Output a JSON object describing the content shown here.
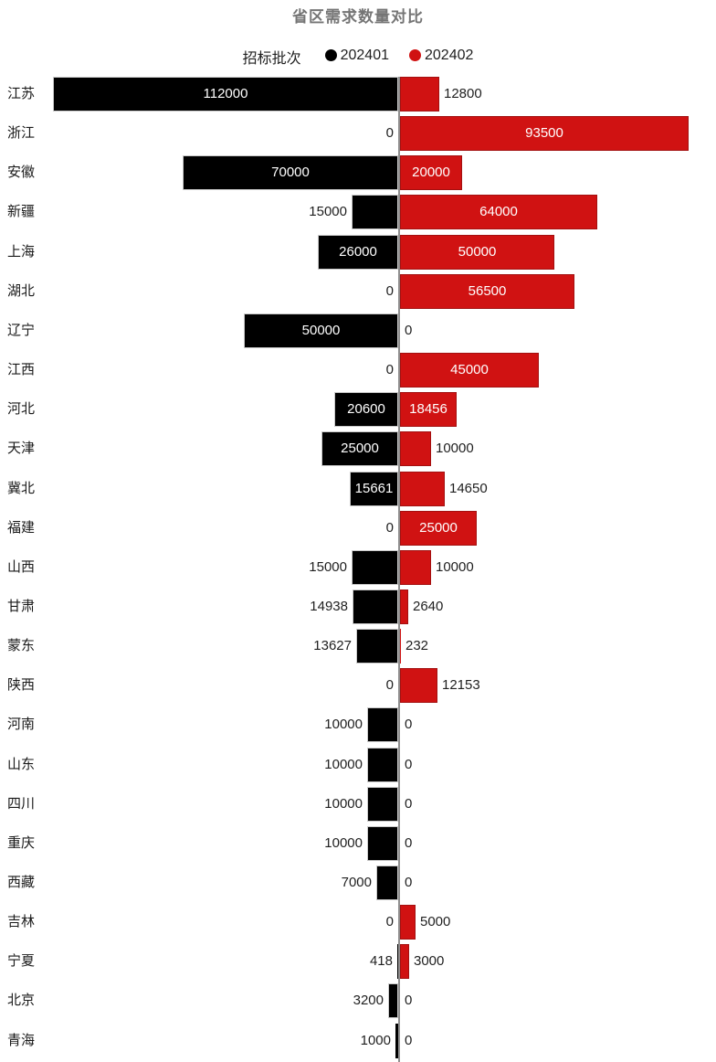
{
  "chart_data": {
    "type": "bar",
    "variant": "diverging-tornado",
    "title": "省区需求数量对比",
    "legend_title": "招标批次",
    "legend_position": "top-center",
    "grid": false,
    "categories": [
      "江苏",
      "浙江",
      "安徽",
      "新疆",
      "上海",
      "湖北",
      "辽宁",
      "江西",
      "河北",
      "天津",
      "冀北",
      "福建",
      "山西",
      "甘肃",
      "蒙东",
      "陕西",
      "河南",
      "山东",
      "四川",
      "重庆",
      "西藏",
      "吉林",
      "宁夏",
      "北京",
      "青海"
    ],
    "series": [
      {
        "name": "202401",
        "direction": "left",
        "color": "#000000",
        "border_color": "#c9c9c9",
        "values": [
          112000,
          0,
          70000,
          15000,
          26000,
          0,
          50000,
          0,
          20600,
          25000,
          15661,
          0,
          15000,
          14938,
          13627,
          0,
          10000,
          10000,
          10000,
          10000,
          7000,
          0,
          418,
          3200,
          1000
        ]
      },
      {
        "name": "202402",
        "direction": "right",
        "color": "#d01212",
        "border_color": "#a31010",
        "values": [
          12800,
          93500,
          20000,
          64000,
          50000,
          56500,
          0,
          45000,
          18456,
          10000,
          14650,
          25000,
          10000,
          2640,
          232,
          12153,
          0,
          0,
          0,
          0,
          0,
          5000,
          3000,
          0,
          0
        ]
      }
    ],
    "axis": {
      "orientation": "vertical-center",
      "color": "#8f8f8f"
    },
    "value_scale_max_left": 112000,
    "value_scale_max_right": 93500,
    "colors": {
      "title_text": "#757575",
      "label_outside": "#1f1f1f",
      "label_inside": "#ffffff",
      "background": "#ffffff"
    }
  }
}
